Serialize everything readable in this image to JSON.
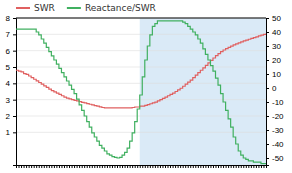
{
  "chart_data": {
    "type": "line",
    "line_style": "step",
    "legend": "upper left",
    "grid": true,
    "tick_labels": "y",
    "x": [
      0,
      1,
      2,
      3,
      4,
      5,
      6,
      7,
      8,
      9,
      10,
      11,
      12,
      13,
      14,
      15,
      16,
      17,
      18,
      19,
      20,
      21,
      22,
      23,
      24,
      25,
      26,
      27,
      28,
      29,
      30,
      31,
      32,
      33,
      34,
      35,
      36,
      37,
      38,
      39,
      40,
      41,
      42,
      43,
      44,
      45,
      46,
      47,
      48,
      49,
      50,
      51,
      52,
      53,
      54,
      55,
      56,
      57,
      58,
      59,
      60,
      61,
      62,
      63,
      64,
      65,
      66,
      67,
      68,
      69,
      70,
      71,
      72,
      73,
      74,
      75,
      76,
      77,
      78,
      79,
      80,
      81,
      82,
      83,
      84,
      85,
      86,
      87,
      88,
      89,
      90,
      91,
      92,
      93,
      94,
      95,
      96,
      97,
      98,
      99
    ],
    "xlim": [
      0,
      99
    ],
    "xticks": [
      0,
      1,
      2,
      3,
      4,
      5,
      6,
      7,
      8,
      9,
      10,
      11,
      12,
      13,
      14,
      15,
      16,
      17,
      18,
      19,
      20,
      21,
      22,
      23,
      24,
      25,
      26,
      27,
      28,
      29,
      30,
      31,
      32,
      33,
      34,
      35,
      36,
      37,
      38,
      39,
      40,
      41,
      42,
      43,
      44,
      45,
      46,
      47,
      48,
      49,
      50,
      51,
      52,
      53,
      54,
      55,
      56,
      57,
      58,
      59,
      60,
      61,
      62,
      63,
      64,
      65,
      66,
      67,
      68,
      69,
      70,
      71,
      72,
      73,
      74,
      75,
      76,
      77,
      78,
      79,
      80,
      81,
      82,
      83,
      84,
      85,
      86,
      87,
      88,
      89,
      90,
      91,
      92,
      93,
      94,
      95,
      96,
      97,
      98,
      99
    ],
    "ylim": [
      -1,
      8
    ],
    "yticks": [
      1,
      2,
      3,
      4,
      5,
      6,
      7,
      8
    ],
    "y2lim": [
      -55,
      50
    ],
    "y2ticks": [
      -50,
      -40,
      -30,
      -20,
      -10,
      0,
      10,
      20,
      30,
      40,
      50
    ],
    "shaded_span": {
      "x": [
        49,
        99
      ],
      "color": "#daeaf7"
    },
    "series": [
      {
        "name": "SWR",
        "color": "#e06060",
        "axis": "y",
        "values": [
          4.8,
          4.75,
          4.7,
          4.6,
          4.55,
          4.45,
          4.35,
          4.25,
          4.15,
          4.05,
          3.95,
          3.85,
          3.75,
          3.65,
          3.55,
          3.48,
          3.4,
          3.32,
          3.24,
          3.16,
          3.1,
          3.05,
          3.0,
          2.96,
          2.92,
          2.88,
          2.84,
          2.8,
          2.76,
          2.72,
          2.68,
          2.64,
          2.6,
          2.56,
          2.52,
          2.5,
          2.5,
          2.5,
          2.5,
          2.5,
          2.5,
          2.5,
          2.5,
          2.5,
          2.5,
          2.5,
          2.52,
          2.55,
          2.55,
          2.6,
          2.6,
          2.65,
          2.7,
          2.75,
          2.8,
          2.85,
          2.92,
          3.0,
          3.08,
          3.16,
          3.24,
          3.32,
          3.4,
          3.5,
          3.6,
          3.7,
          3.82,
          3.95,
          4.08,
          4.2,
          4.35,
          4.5,
          4.65,
          4.8,
          4.95,
          5.1,
          5.25,
          5.4,
          5.55,
          5.7,
          5.82,
          5.94,
          6.04,
          6.12,
          6.2,
          6.28,
          6.35,
          6.42,
          6.48,
          6.54,
          6.6,
          6.65,
          6.7,
          6.75,
          6.8,
          6.85,
          6.9,
          6.95,
          7.0,
          7.05
        ]
      },
      {
        "name": "Reactance/SWR",
        "color": "#40b060",
        "axis": "y2",
        "values": [
          42,
          42,
          42,
          42,
          42,
          42,
          42,
          42,
          40,
          38,
          35,
          32,
          29,
          26,
          23,
          20,
          17,
          14,
          11,
          8,
          5,
          2,
          -1,
          -4,
          -8,
          -12,
          -16,
          -20,
          -24,
          -28,
          -32,
          -35,
          -38,
          -41,
          -43,
          -45,
          -47,
          -48,
          -49,
          -49.5,
          -50,
          -49.5,
          -48,
          -46,
          -43,
          -38,
          -32,
          -24,
          -15,
          -5,
          8,
          20,
          30,
          38,
          44,
          46,
          48,
          48,
          48,
          48,
          48,
          48,
          48,
          48,
          48,
          48,
          47,
          46,
          44,
          42,
          40,
          38,
          35,
          32,
          28,
          24,
          20,
          16,
          12,
          7,
          2,
          -4,
          -10,
          -16,
          -22,
          -28,
          -35,
          -40,
          -45,
          -48,
          -50,
          -51,
          -52,
          -52,
          -53,
          -53,
          -53,
          -54,
          -54,
          -54
        ]
      }
    ]
  }
}
